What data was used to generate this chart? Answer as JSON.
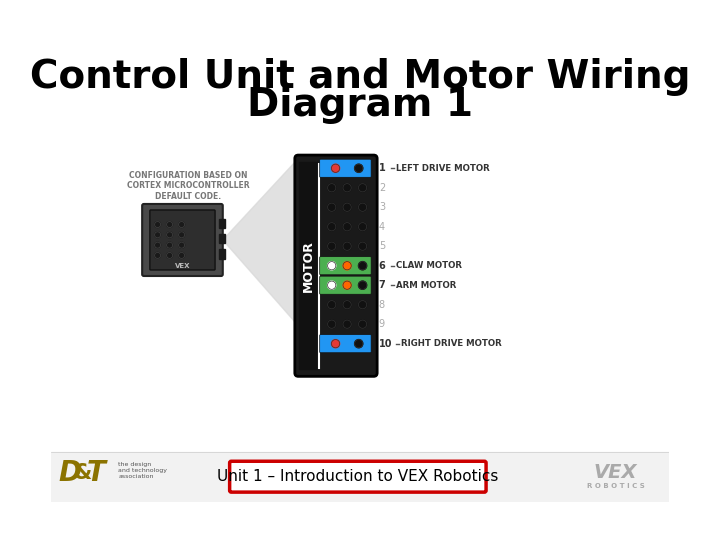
{
  "title_line1": "Control Unit and Motor Wiring",
  "title_line2": "Diagram 1",
  "title_fontsize": 28,
  "title_fontweight": "bold",
  "bg_color": "#ffffff",
  "subtitle_text": "Unit 1 – Introduction to VEX Robotics",
  "subtitle_fontsize": 11,
  "config_text": "CONFIGURATION BASED ON\nCORTEX MICROCONTROLLER\nDEFAULT CODE.",
  "connector_color": "#1a1a1a",
  "blue_connector": "#2196f3",
  "green_connector": "#4caf50",
  "red_dot": "#e53935",
  "black_dot": "#111111",
  "white_dot": "#ffffff",
  "orange_dot": "#ff6600",
  "motor_label_color_active": "#333333",
  "motor_label_color_inactive": "#aaaaaa",
  "label_dash_color": "#555555",
  "subtitle_box_color": "#cc0000",
  "subtitle_text_color": "#000000",
  "port_configs": {
    "1": {
      "color": "blue",
      "dots": [
        "red",
        "black"
      ]
    },
    "2": {
      "color": "dark",
      "dots": [
        "black",
        "black",
        "black"
      ]
    },
    "3": {
      "color": "dark",
      "dots": [
        "black",
        "black",
        "black"
      ]
    },
    "4": {
      "color": "dark",
      "dots": [
        "black",
        "black",
        "black"
      ]
    },
    "5": {
      "color": "dark",
      "dots": [
        "black",
        "black",
        "black"
      ]
    },
    "6": {
      "color": "green",
      "dots": [
        "white",
        "orange",
        "black"
      ]
    },
    "7": {
      "color": "green",
      "dots": [
        "white",
        "orange",
        "black"
      ]
    },
    "8": {
      "color": "dark",
      "dots": [
        "black",
        "black",
        "black"
      ]
    },
    "9": {
      "color": "dark",
      "dots": [
        "black",
        "black",
        "black"
      ]
    },
    "10": {
      "color": "blue",
      "dots": [
        "red",
        "black"
      ]
    }
  },
  "label_info": {
    "1": {
      "num": "1",
      "label": "LEFT DRIVE MOTOR",
      "active": true
    },
    "2": {
      "num": "2",
      "label": "",
      "active": false
    },
    "3": {
      "num": "3",
      "label": "",
      "active": false
    },
    "4": {
      "num": "4",
      "label": "",
      "active": false
    },
    "5": {
      "num": "5",
      "label": "",
      "active": false
    },
    "6": {
      "num": "6",
      "label": "CLAW MOTOR",
      "active": true
    },
    "7": {
      "num": "7",
      "label": "ARM MOTOR",
      "active": true
    },
    "8": {
      "num": "8",
      "label": "",
      "active": false
    },
    "9": {
      "num": "9",
      "label": "",
      "active": false
    },
    "10": {
      "num": "10",
      "label": "RIGHT DRIVE MOTOR",
      "active": true
    }
  }
}
